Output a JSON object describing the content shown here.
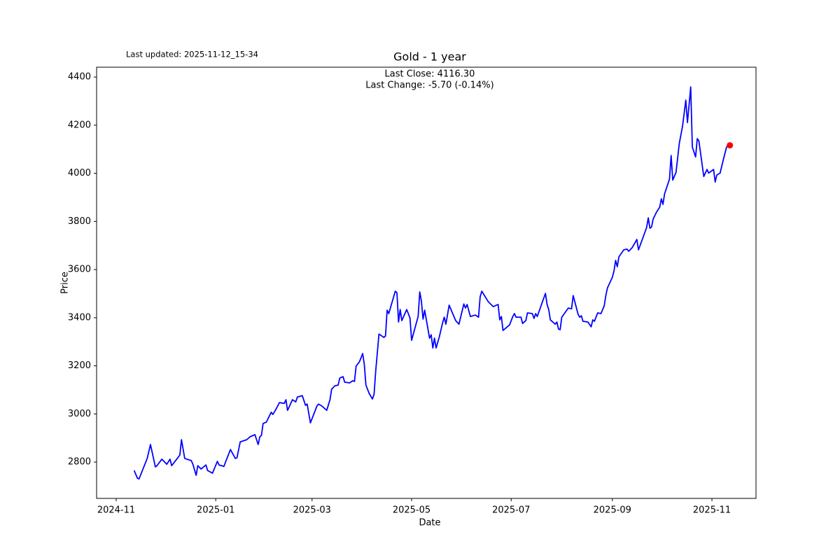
{
  "chart_data": {
    "type": "line",
    "title": "Gold - 1 year",
    "last_updated": "Last updated: 2025-11-12_15-34",
    "annotations": [
      "Last Close: 4116.30",
      "Last Change: -5.70 (-0.14%)"
    ],
    "xlabel": "Date",
    "ylabel": "Price",
    "xlim": [
      "2024-10-20",
      "2025-11-28"
    ],
    "ylim": [
      2649,
      4441
    ],
    "xticks": [
      {
        "value": "2024-11-01",
        "label": "2024-11"
      },
      {
        "value": "2025-01-01",
        "label": "2025-01"
      },
      {
        "value": "2025-03-01",
        "label": "2025-03"
      },
      {
        "value": "2025-05-01",
        "label": "2025-05"
      },
      {
        "value": "2025-07-01",
        "label": "2025-07"
      },
      {
        "value": "2025-09-01",
        "label": "2025-09"
      },
      {
        "value": "2025-11-01",
        "label": "2025-11"
      }
    ],
    "yticks": [
      2800,
      3000,
      3200,
      3400,
      3600,
      3800,
      4000,
      4200,
      4400
    ],
    "grid": false,
    "x": [
      "2024-11-12",
      "2024-11-14",
      "2024-11-15",
      "2024-11-20",
      "2024-11-22",
      "2024-11-25",
      "2024-11-26",
      "2024-11-29",
      "2024-12-02",
      "2024-12-04",
      "2024-12-05",
      "2024-12-10",
      "2024-12-11",
      "2024-12-13",
      "2024-12-17",
      "2024-12-18",
      "2024-12-20",
      "2024-12-21",
      "2024-12-23",
      "2024-12-26",
      "2024-12-27",
      "2024-12-30",
      "2025-01-02",
      "2025-01-03",
      "2025-01-06",
      "2025-01-07",
      "2025-01-10",
      "2025-01-13",
      "2025-01-14",
      "2025-01-16",
      "2025-01-20",
      "2025-01-22",
      "2025-01-25",
      "2025-01-27",
      "2025-01-28",
      "2025-01-29",
      "2025-01-30",
      "2025-02-01",
      "2025-02-04",
      "2025-02-05",
      "2025-02-07",
      "2025-02-09",
      "2025-02-12",
      "2025-02-13",
      "2025-02-14",
      "2025-02-17",
      "2025-02-19",
      "2025-02-20",
      "2025-02-23",
      "2025-02-25",
      "2025-02-26",
      "2025-02-28",
      "2025-03-04",
      "2025-03-05",
      "2025-03-07",
      "2025-03-10",
      "2025-03-12",
      "2025-03-13",
      "2025-03-15",
      "2025-03-17",
      "2025-03-18",
      "2025-03-20",
      "2025-03-21",
      "2025-03-24",
      "2025-03-26",
      "2025-03-27",
      "2025-03-28",
      "2025-03-30",
      "2025-03-31",
      "2025-04-01",
      "2025-04-02",
      "2025-04-03",
      "2025-04-05",
      "2025-04-07",
      "2025-04-08",
      "2025-04-09",
      "2025-04-11",
      "2025-04-14",
      "2025-04-15",
      "2025-04-16",
      "2025-04-17",
      "2025-04-21",
      "2025-04-22",
      "2025-04-23",
      "2025-04-24",
      "2025-04-25",
      "2025-04-28",
      "2025-04-30",
      "2025-05-01",
      "2025-05-05",
      "2025-05-06",
      "2025-05-07",
      "2025-05-08",
      "2025-05-09",
      "2025-05-12",
      "2025-05-13",
      "2025-05-14",
      "2025-05-15",
      "2025-05-16",
      "2025-05-18",
      "2025-05-20",
      "2025-05-21",
      "2025-05-22",
      "2025-05-24",
      "2025-05-28",
      "2025-05-30",
      "2025-06-02",
      "2025-06-03",
      "2025-06-04",
      "2025-06-06",
      "2025-06-09",
      "2025-06-11",
      "2025-06-12",
      "2025-06-13",
      "2025-06-17",
      "2025-06-20",
      "2025-06-23",
      "2025-06-24",
      "2025-06-25",
      "2025-06-26",
      "2025-06-30",
      "2025-07-02",
      "2025-07-03",
      "2025-07-04",
      "2025-07-07",
      "2025-07-08",
      "2025-07-10",
      "2025-07-11",
      "2025-07-14",
      "2025-07-15",
      "2025-07-16",
      "2025-07-17",
      "2025-07-20",
      "2025-07-22",
      "2025-07-23",
      "2025-07-24",
      "2025-07-25",
      "2025-07-28",
      "2025-07-29",
      "2025-07-30",
      "2025-07-31",
      "2025-08-01",
      "2025-08-05",
      "2025-08-07",
      "2025-08-08",
      "2025-08-11",
      "2025-08-12",
      "2025-08-13",
      "2025-08-14",
      "2025-08-17",
      "2025-08-19",
      "2025-08-20",
      "2025-08-21",
      "2025-08-23",
      "2025-08-25",
      "2025-08-27",
      "2025-08-28",
      "2025-08-29",
      "2025-09-01",
      "2025-09-02",
      "2025-09-03",
      "2025-09-04",
      "2025-09-05",
      "2025-09-08",
      "2025-09-10",
      "2025-09-11",
      "2025-09-13",
      "2025-09-15",
      "2025-09-16",
      "2025-09-17",
      "2025-09-19",
      "2025-09-22",
      "2025-09-23",
      "2025-09-24",
      "2025-09-25",
      "2025-09-26",
      "2025-09-28",
      "2025-09-30",
      "2025-10-01",
      "2025-10-02",
      "2025-10-03",
      "2025-10-06",
      "2025-10-07",
      "2025-10-08",
      "2025-10-10",
      "2025-10-12",
      "2025-10-14",
      "2025-10-16",
      "2025-10-17",
      "2025-10-18",
      "2025-10-19",
      "2025-10-20",
      "2025-10-22",
      "2025-10-23",
      "2025-10-24",
      "2025-10-27",
      "2025-10-29",
      "2025-10-30",
      "2025-11-02",
      "2025-11-03",
      "2025-11-04",
      "2025-11-06",
      "2025-11-08",
      "2025-11-10",
      "2025-11-12"
    ],
    "series": [
      {
        "name": "Gold",
        "color": "#0000ff",
        "values": [
          2765,
          2733,
          2730,
          2815,
          2873,
          2780,
          2785,
          2812,
          2791,
          2812,
          2785,
          2829,
          2893,
          2815,
          2806,
          2791,
          2745,
          2785,
          2771,
          2788,
          2765,
          2754,
          2803,
          2788,
          2782,
          2800,
          2852,
          2815,
          2818,
          2884,
          2893,
          2905,
          2914,
          2873,
          2905,
          2911,
          2960,
          2966,
          3007,
          2998,
          3021,
          3047,
          3044,
          3059,
          3015,
          3059,
          3050,
          3070,
          3076,
          3036,
          3041,
          2963,
          3033,
          3041,
          3033,
          3015,
          3059,
          3103,
          3117,
          3120,
          3149,
          3155,
          3132,
          3129,
          3138,
          3135,
          3199,
          3216,
          3233,
          3251,
          3207,
          3120,
          3085,
          3062,
          3082,
          3178,
          3332,
          3318,
          3324,
          3431,
          3417,
          3510,
          3504,
          3382,
          3434,
          3388,
          3434,
          3399,
          3306,
          3405,
          3507,
          3469,
          3394,
          3431,
          3315,
          3329,
          3274,
          3315,
          3274,
          3321,
          3379,
          3402,
          3373,
          3452,
          3388,
          3373,
          3457,
          3440,
          3455,
          3405,
          3411,
          3402,
          3487,
          3510,
          3466,
          3446,
          3455,
          3391,
          3405,
          3347,
          3370,
          3405,
          3417,
          3402,
          3402,
          3376,
          3388,
          3420,
          3417,
          3397,
          3417,
          3405,
          3463,
          3501,
          3455,
          3434,
          3391,
          3373,
          3382,
          3353,
          3350,
          3402,
          3440,
          3437,
          3492,
          3414,
          3402,
          3408,
          3385,
          3382,
          3362,
          3391,
          3385,
          3420,
          3417,
          3449,
          3492,
          3524,
          3568,
          3594,
          3638,
          3612,
          3653,
          3682,
          3685,
          3676,
          3690,
          3713,
          3725,
          3682,
          3719,
          3775,
          3815,
          3772,
          3777,
          3810,
          3838,
          3859,
          3894,
          3871,
          3915,
          3976,
          4074,
          3972,
          4004,
          4124,
          4196,
          4304,
          4211,
          4284,
          4359,
          4109,
          4068,
          4144,
          4135,
          3987,
          4016,
          4001,
          4016,
          3964,
          3993,
          4001,
          4057,
          4110,
          4116.3
        ]
      }
    ],
    "marker": {
      "x": "2025-11-12",
      "value": 4116.3,
      "color": "#ff0000"
    }
  }
}
